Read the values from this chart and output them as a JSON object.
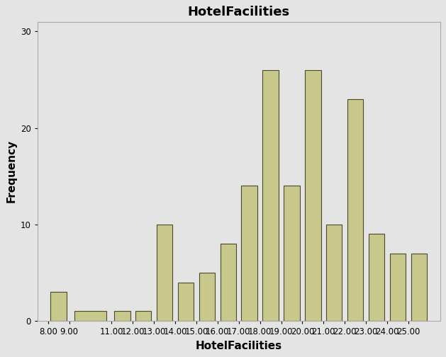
{
  "title": "HotelFacilities",
  "xlabel": "HotelFacilities",
  "ylabel": "Frequency",
  "bar_color": "#c8c88c",
  "edge_color": "#4a4a2a",
  "background_color": "#e4e4e4",
  "plot_bg_color": "#e4e4e4",
  "categories": [
    "8.00",
    "9.00",
    "11.00",
    "12.00",
    "13.00",
    "14.00",
    "15.00",
    "16.00",
    "17.00",
    "18.00",
    "19.00",
    "20.00",
    "21.00",
    "22.00",
    "23.00",
    "24.00",
    "25.00"
  ],
  "bin_edges": [
    8,
    9,
    11,
    12,
    13,
    14,
    15,
    16,
    17,
    18,
    19,
    20,
    21,
    22,
    23,
    24,
    25,
    26
  ],
  "values": [
    3,
    1,
    1,
    1,
    10,
    4,
    5,
    8,
    14,
    26,
    14,
    26,
    10,
    23,
    9,
    7,
    7
  ],
  "ylim": [
    0,
    31
  ],
  "yticks": [
    0,
    10,
    20,
    30
  ],
  "xlim": [
    7.5,
    26.5
  ],
  "title_fontsize": 13,
  "label_fontsize": 11,
  "tick_fontsize": 8.5
}
